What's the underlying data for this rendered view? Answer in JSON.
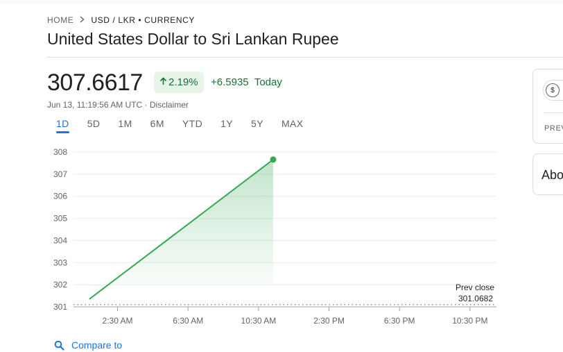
{
  "breadcrumb": {
    "home": "HOME",
    "current": "USD / LKR • CURRENCY"
  },
  "title": "United States Dollar to Sri Lankan Rupee",
  "quote": {
    "price": "307.6617",
    "percent_change": "2.19%",
    "absolute_change": "+6.5935",
    "period_label": "Today",
    "timestamp": "Jun 13, 11:19:56 AM UTC",
    "separator": " · ",
    "disclaimer": "Disclaimer"
  },
  "ranges": [
    "1D",
    "5D",
    "1M",
    "6M",
    "YTD",
    "1Y",
    "5Y",
    "MAX"
  ],
  "active_range": "1D",
  "compare_label": "Compare to",
  "side_panel": {
    "prev_label": "PREV",
    "about_label": "Abo"
  },
  "colors": {
    "up": "#34a853",
    "up_text": "#137333",
    "accent": "#1a73e8"
  },
  "chart_data": {
    "type": "area",
    "x_ticks": [
      "2:30 AM",
      "6:30 AM",
      "10:30 AM",
      "2:30 PM",
      "6:30 PM",
      "10:30 PM"
    ],
    "x_tick_hours": [
      2.5,
      6.5,
      10.5,
      14.5,
      18.5,
      22.5
    ],
    "x_range_hours": [
      0,
      24
    ],
    "y_ticks": [
      301,
      302,
      303,
      304,
      305,
      306,
      307,
      308
    ],
    "ylim": [
      301,
      308
    ],
    "grid": true,
    "points": [
      {
        "h": 0.9,
        "v": 301.35
      },
      {
        "h": 11.33,
        "v": 307.6617
      }
    ],
    "prev_close": {
      "label": "Prev close",
      "value": 301.0682,
      "value_text": "301.0682"
    }
  }
}
